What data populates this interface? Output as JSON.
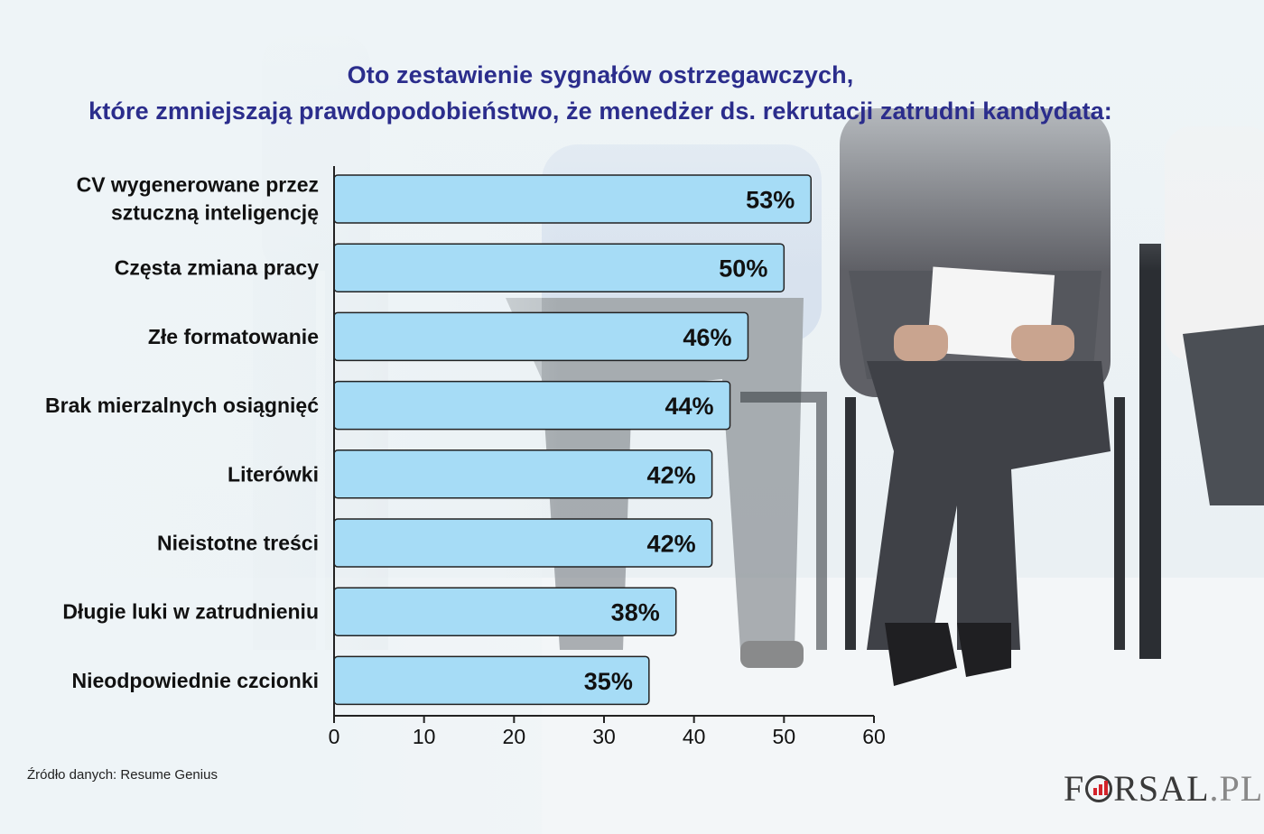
{
  "title_lines": [
    "Oto zestawienie sygnałów ostrzegawczych,",
    "które zmniejszają prawdopodobieństwo, że menedżer ds. rekrutacji zatrudni kandydata:"
  ],
  "source": "Źródło danych: Resume Genius",
  "brand": {
    "main": "F",
    "rest": "RSAL",
    "suffix": ".PL",
    "mark_color": "#d3232a"
  },
  "colors": {
    "bar_fill": "#a6dcf6",
    "bar_stroke": "#222222",
    "title": "#2b2d8c",
    "axis": "#222222"
  },
  "chart_data": {
    "type": "bar",
    "orientation": "horizontal",
    "categories": [
      [
        "CV wygenerowane przez",
        "sztuczną inteligencję"
      ],
      [
        "Częsta zmiana pracy"
      ],
      [
        "Złe formatowanie"
      ],
      [
        "Brak mierzalnych osiągnięć"
      ],
      [
        "Literówki"
      ],
      [
        "Nieistotne treści"
      ],
      [
        "Długie luki w zatrudnieniu"
      ],
      [
        "Nieodpowiednie czcionki"
      ]
    ],
    "values": [
      53,
      50,
      46,
      44,
      42,
      42,
      38,
      35
    ],
    "value_labels": [
      "53%",
      "50%",
      "46%",
      "44%",
      "42%",
      "42%",
      "38%",
      "35%"
    ],
    "xlim": [
      0,
      60
    ],
    "xticks": [
      0,
      10,
      20,
      30,
      40,
      50,
      60
    ],
    "grid": false
  }
}
